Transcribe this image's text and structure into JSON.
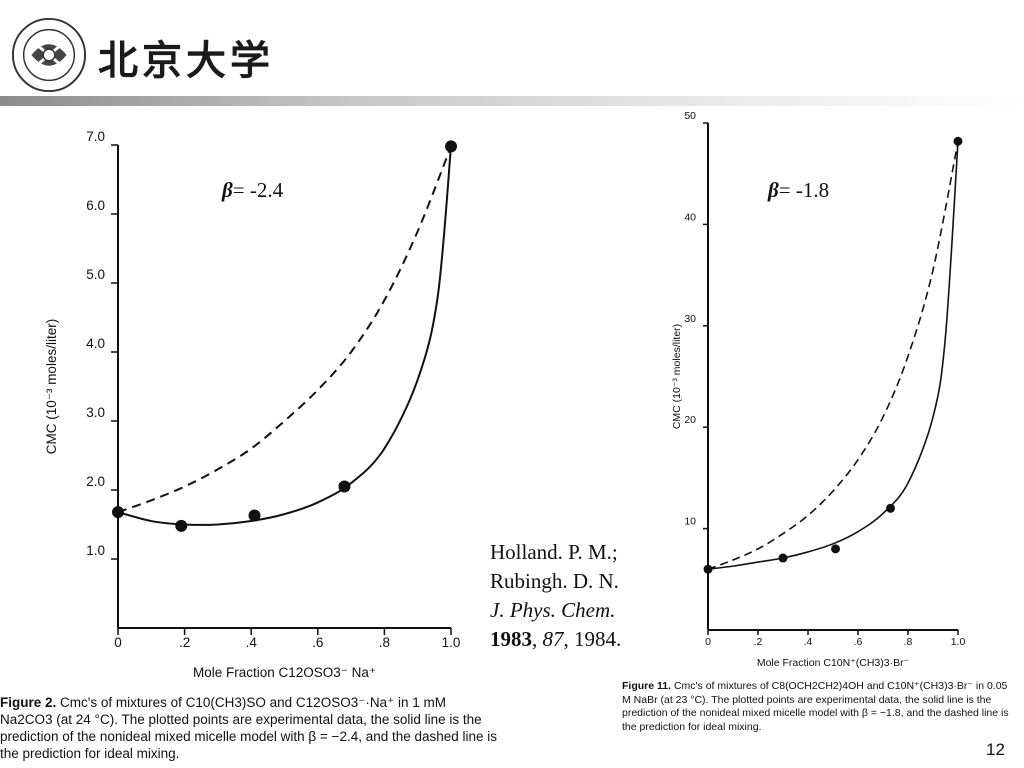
{
  "header": {
    "university_name": "北京大学",
    "seal_text": "PEKING UNIVERSITY 1898"
  },
  "reference": {
    "line1": "Holland. P. M.;",
    "line2": "Rubingh. D. N.",
    "journal": "J. Phys. Chem.",
    "year": "1983",
    "volume": "87",
    "page": "1984."
  },
  "page_number": "12",
  "chart_data": [
    {
      "type": "line",
      "title": "",
      "annotation": {
        "symbol": "β",
        "text": "= -2.4"
      },
      "xlabel": "Mole Fraction C12OSO3⁻ Na⁺",
      "ylabel": "CMC (10⁻³ moles/liter)",
      "xlim": [
        0,
        1.0
      ],
      "ylim": [
        0,
        7.0
      ],
      "x_ticks": [
        "0",
        ".2",
        ".4",
        ".6",
        ".8",
        "1.0"
      ],
      "y_ticks": [
        "1.0",
        "2.0",
        "3.0",
        "4.0",
        "5.0",
        "6.0",
        "7.0"
      ],
      "series": [
        {
          "style": "points",
          "x": [
            0,
            0.19,
            0.41,
            0.68,
            1.0
          ],
          "y": [
            1.68,
            1.48,
            1.63,
            2.05,
            6.98
          ]
        },
        {
          "style": "solid",
          "x": [
            0,
            0.1,
            0.2,
            0.3,
            0.4,
            0.5,
            0.6,
            0.7,
            0.8,
            0.9,
            0.96,
            1.0
          ],
          "y": [
            1.68,
            1.55,
            1.5,
            1.5,
            1.55,
            1.65,
            1.82,
            2.1,
            2.6,
            3.6,
            4.8,
            6.98
          ]
        },
        {
          "style": "dashed",
          "x": [
            0,
            0.1,
            0.2,
            0.3,
            0.4,
            0.5,
            0.6,
            0.7,
            0.8,
            0.9,
            1.0
          ],
          "y": [
            1.68,
            1.85,
            2.05,
            2.3,
            2.6,
            3.0,
            3.45,
            4.0,
            4.75,
            5.75,
            6.98
          ]
        }
      ],
      "caption": {
        "label": "Figure 2.",
        "text": "Cmc's of mixtures of C10(CH3)SO and C12OSO3⁻·Na⁺ in 1 mM Na2CO3 (at 24 °C). The plotted points are experimental data, the solid line is the prediction of the nonideal mixed micelle model with β = −2.4, and the dashed line is the prediction for ideal mixing."
      }
    },
    {
      "type": "line",
      "title": "",
      "annotation": {
        "symbol": "β",
        "text": "= -1.8"
      },
      "xlabel": "Mole Fraction C10N⁺(CH3)3·Br⁻",
      "ylabel": "CMC (10⁻³ moles/liter)",
      "xlim": [
        0,
        1.0
      ],
      "ylim": [
        0,
        50
      ],
      "x_ticks": [
        "0",
        ".2",
        ".4",
        ".6",
        ".8",
        "1.0"
      ],
      "y_ticks": [
        "10",
        "20",
        "30",
        "40",
        "50"
      ],
      "series": [
        {
          "style": "points",
          "x": [
            0,
            0.3,
            0.51,
            0.73,
            1.0
          ],
          "y": [
            6.0,
            7.1,
            8.0,
            12.0,
            48.2
          ]
        },
        {
          "style": "solid",
          "x": [
            0,
            0.1,
            0.2,
            0.3,
            0.4,
            0.5,
            0.6,
            0.7,
            0.8,
            0.9,
            0.95,
            1.0
          ],
          "y": [
            6.0,
            6.3,
            6.7,
            7.1,
            7.7,
            8.5,
            9.7,
            11.5,
            14.5,
            21.0,
            29.0,
            48.2
          ]
        },
        {
          "style": "dashed",
          "x": [
            0,
            0.1,
            0.2,
            0.3,
            0.4,
            0.5,
            0.6,
            0.7,
            0.8,
            0.9,
            1.0
          ],
          "y": [
            6.0,
            6.9,
            8.0,
            9.5,
            11.3,
            13.7,
            16.8,
            21.0,
            27.0,
            35.5,
            48.2
          ]
        }
      ],
      "caption": {
        "label": "Figure 11.",
        "text": "Cmc's of mixtures of C8(OCH2CH2)4OH and C10N⁺(CH3)3·Br⁻ in 0.05 M NaBr (at 23 °C). The plotted points are experimental data, the solid line is the prediction of the nonideal mixed micelle model with β = −1.8, and the dashed line is the prediction for ideal mixing."
      }
    }
  ]
}
